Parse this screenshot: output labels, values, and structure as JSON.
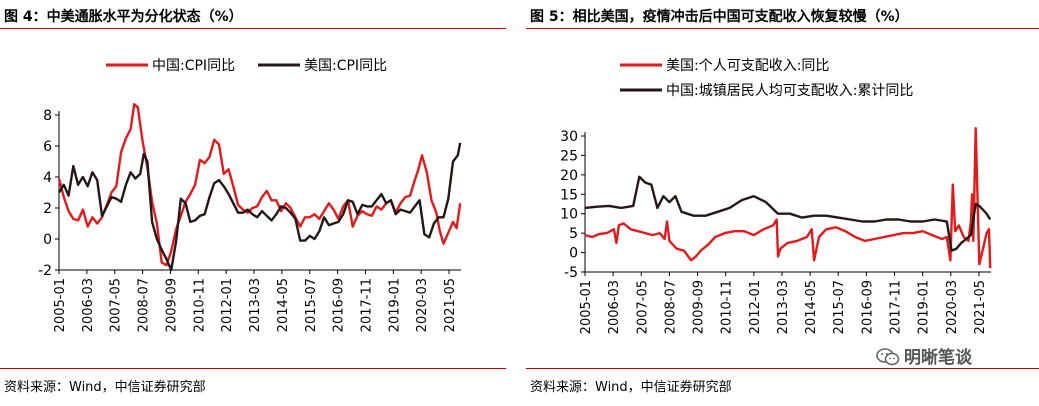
{
  "left": {
    "title": "图 4：中美通胀水平为分化状态（%）",
    "source": "资料来源：Wind，中信证券研究部"
  },
  "right": {
    "title": "图 5：相比美国，疫情冲击后中国可支配收入恢复较慢（%）",
    "source": "资料来源：Wind，中信证券研究部"
  },
  "watermark": {
    "text": "明晰笔谈",
    "icon": "wechat-icon"
  },
  "colors": {
    "red": "#e31a1c",
    "black": "#231815",
    "rule": "#c00000"
  },
  "chart_data": [
    {
      "type": "line",
      "title": "",
      "legend_placement": "top",
      "ylim": [
        -2,
        8
      ],
      "yticks": [
        -2,
        0,
        2,
        4,
        6,
        8
      ],
      "xlim": [
        2005.0,
        2021.8333
      ],
      "xticks": [
        "2005-01",
        "2006-03",
        "2007-05",
        "2008-07",
        "2009-09",
        "2010-11",
        "2012-01",
        "2013-03",
        "2014-05",
        "2015-07",
        "2016-09",
        "2017-11",
        "2019-01",
        "2020-03",
        "2021-05"
      ],
      "xtick_values": [
        2005.0,
        2006.1667,
        2007.3333,
        2008.5,
        2009.6667,
        2010.8333,
        2012.0,
        2013.1667,
        2014.3333,
        2015.5,
        2016.6667,
        2017.8333,
        2019.0,
        2020.1667,
        2021.3333
      ],
      "grid": false,
      "series": [
        {
          "name": "中国:CPI同比",
          "color": "#e31a1c",
          "x": [
            2005.0,
            2005.2,
            2005.4,
            2005.6,
            2005.8,
            2006.0,
            2006.2,
            2006.4,
            2006.6,
            2006.8,
            2007.0,
            2007.2,
            2007.4,
            2007.6,
            2007.8,
            2008.0,
            2008.15,
            2008.3,
            2008.5,
            2008.7,
            2008.9,
            2009.1,
            2009.3,
            2009.5,
            2009.7,
            2009.9,
            2010.1,
            2010.3,
            2010.5,
            2010.7,
            2010.9,
            2011.1,
            2011.3,
            2011.5,
            2011.7,
            2011.9,
            2012.1,
            2012.3,
            2012.5,
            2012.7,
            2012.9,
            2013.1,
            2013.3,
            2013.5,
            2013.7,
            2013.9,
            2014.1,
            2014.3,
            2014.5,
            2014.7,
            2014.9,
            2015.1,
            2015.3,
            2015.5,
            2015.7,
            2015.9,
            2016.1,
            2016.3,
            2016.5,
            2016.7,
            2016.9,
            2017.1,
            2017.3,
            2017.5,
            2017.7,
            2017.9,
            2018.1,
            2018.3,
            2018.5,
            2018.7,
            2018.9,
            2019.1,
            2019.3,
            2019.5,
            2019.7,
            2019.9,
            2020.05,
            2020.2,
            2020.4,
            2020.6,
            2020.8,
            2020.95,
            2021.1,
            2021.3,
            2021.5,
            2021.65,
            2021.8
          ],
          "y": [
            3.9,
            2.7,
            1.8,
            1.3,
            1.2,
            1.9,
            0.8,
            1.4,
            1.0,
            1.4,
            2.2,
            3.0,
            3.4,
            5.6,
            6.5,
            7.1,
            8.7,
            8.5,
            6.3,
            4.6,
            2.4,
            1.0,
            -1.5,
            -1.7,
            -0.8,
            0.6,
            1.5,
            2.4,
            2.9,
            3.5,
            5.1,
            4.9,
            5.3,
            6.4,
            6.1,
            4.2,
            4.5,
            3.4,
            2.2,
            1.9,
            1.7,
            2.0,
            2.1,
            2.7,
            3.1,
            2.5,
            2.5,
            1.8,
            2.3,
            2.0,
            1.4,
            0.8,
            1.4,
            1.4,
            1.6,
            1.3,
            1.8,
            2.3,
            1.9,
            1.3,
            2.1,
            2.5,
            0.8,
            1.5,
            1.8,
            1.6,
            1.5,
            2.1,
            1.9,
            2.3,
            2.5,
            1.7,
            2.3,
            2.7,
            2.8,
            3.8,
            4.5,
            5.4,
            4.3,
            2.5,
            1.7,
            0.5,
            -0.3,
            0.4,
            1.1,
            0.7,
            2.3
          ]
        },
        {
          "name": "美国:CPI同比",
          "color": "#231815",
          "x": [
            2005.0,
            2005.2,
            2005.4,
            2005.6,
            2005.8,
            2006.0,
            2006.2,
            2006.4,
            2006.6,
            2006.8,
            2007.0,
            2007.2,
            2007.4,
            2007.6,
            2007.8,
            2008.0,
            2008.2,
            2008.4,
            2008.55,
            2008.7,
            2008.9,
            2009.1,
            2009.3,
            2009.5,
            2009.7,
            2009.9,
            2010.1,
            2010.3,
            2010.5,
            2010.7,
            2010.9,
            2011.1,
            2011.3,
            2011.5,
            2011.7,
            2011.9,
            2012.1,
            2012.3,
            2012.5,
            2012.7,
            2012.9,
            2013.1,
            2013.3,
            2013.5,
            2013.7,
            2013.9,
            2014.1,
            2014.3,
            2014.5,
            2014.7,
            2014.9,
            2015.1,
            2015.3,
            2015.5,
            2015.7,
            2015.9,
            2016.1,
            2016.3,
            2016.5,
            2016.7,
            2016.9,
            2017.1,
            2017.3,
            2017.5,
            2017.7,
            2017.9,
            2018.1,
            2018.3,
            2018.5,
            2018.7,
            2018.9,
            2019.1,
            2019.3,
            2019.5,
            2019.7,
            2019.9,
            2020.1,
            2020.3,
            2020.5,
            2020.7,
            2020.9,
            2021.1,
            2021.3,
            2021.5,
            2021.7,
            2021.8
          ],
          "y": [
            3.0,
            3.5,
            2.8,
            4.7,
            3.5,
            4.0,
            3.4,
            4.3,
            3.8,
            1.5,
            2.1,
            2.7,
            2.6,
            2.4,
            3.5,
            4.3,
            3.9,
            4.2,
            5.5,
            5.0,
            1.1,
            0.0,
            -0.7,
            -1.3,
            -2.0,
            -0.2,
            2.6,
            2.3,
            1.1,
            1.2,
            1.5,
            1.6,
            2.7,
            3.6,
            3.8,
            3.4,
            2.9,
            2.3,
            1.7,
            1.7,
            1.9,
            1.6,
            1.4,
            1.8,
            1.5,
            1.2,
            1.6,
            2.1,
            2.0,
            1.7,
            1.3,
            -0.1,
            -0.1,
            0.2,
            0.0,
            0.5,
            1.4,
            0.9,
            1.0,
            1.1,
            1.6,
            2.5,
            2.4,
            1.6,
            2.2,
            2.1,
            2.1,
            2.5,
            2.9,
            2.3,
            2.5,
            1.6,
            1.9,
            1.8,
            1.7,
            2.1,
            2.5,
            0.3,
            0.1,
            1.0,
            1.4,
            1.4,
            2.6,
            5.0,
            5.4,
            6.2
          ]
        }
      ]
    },
    {
      "type": "line",
      "title": "",
      "legend_placement": "top",
      "ylim": [
        -5,
        30
      ],
      "yticks": [
        -5,
        0,
        5,
        10,
        15,
        20,
        25,
        30
      ],
      "xlim": [
        2005.0,
        2021.8333
      ],
      "xticks": [
        "2005-01",
        "2006-03",
        "2007-05",
        "2008-07",
        "2009-09",
        "2010-11",
        "2012-01",
        "2013-03",
        "2014-05",
        "2015-07",
        "2016-09",
        "2017-11",
        "2019-01",
        "2020-03",
        "2021-05"
      ],
      "xtick_values": [
        2005.0,
        2006.1667,
        2007.3333,
        2008.5,
        2009.6667,
        2010.8333,
        2012.0,
        2013.1667,
        2014.3333,
        2015.5,
        2016.6667,
        2017.8333,
        2019.0,
        2020.1667,
        2021.3333
      ],
      "grid": false,
      "series": [
        {
          "name": "美国:个人可支配收入:同比",
          "color": "#e31a1c",
          "x": [
            2005.0,
            2005.3,
            2005.6,
            2005.9,
            2006.2,
            2006.3,
            2006.4,
            2006.6,
            2006.9,
            2007.2,
            2007.5,
            2007.8,
            2008.1,
            2008.3,
            2008.4,
            2008.5,
            2008.8,
            2009.1,
            2009.4,
            2009.6,
            2009.8,
            2010.1,
            2010.4,
            2010.8,
            2011.2,
            2011.6,
            2012.0,
            2012.4,
            2012.8,
            2012.95,
            2013.0,
            2013.1,
            2013.4,
            2013.8,
            2014.2,
            2014.4,
            2014.5,
            2014.7,
            2015.0,
            2015.4,
            2015.8,
            2016.2,
            2016.6,
            2017.0,
            2017.4,
            2017.8,
            2018.2,
            2018.6,
            2019.0,
            2019.4,
            2019.8,
            2020.0,
            2020.15,
            2020.25,
            2020.35,
            2020.5,
            2020.7,
            2020.9,
            2021.0,
            2021.05,
            2021.1,
            2021.2,
            2021.35,
            2021.5,
            2021.65,
            2021.75,
            2021.8
          ],
          "y": [
            4.5,
            4.0,
            4.8,
            5.0,
            6.0,
            2.5,
            7.0,
            7.5,
            6.0,
            5.5,
            5.0,
            4.5,
            5.0,
            3.5,
            8.0,
            3.0,
            1.0,
            0.5,
            -2.0,
            -1.0,
            0.5,
            2.0,
            4.0,
            5.0,
            5.5,
            5.5,
            4.5,
            6.0,
            7.0,
            8.5,
            -1.0,
            1.0,
            2.5,
            3.0,
            4.0,
            6.0,
            -2.0,
            4.0,
            6.0,
            6.5,
            5.5,
            4.0,
            3.0,
            3.5,
            4.0,
            4.5,
            5.0,
            5.0,
            5.5,
            4.5,
            3.5,
            4.0,
            -2.0,
            17.5,
            5.5,
            7.0,
            4.0,
            3.0,
            8.0,
            15.0,
            3.0,
            32.0,
            -3.0,
            1.0,
            5.0,
            6.0,
            -4.0
          ]
        },
        {
          "name": "中国:城镇居民人均可支配收入:累计同比",
          "color": "#231815",
          "x": [
            2005.0,
            2005.5,
            2006.0,
            2006.5,
            2007.0,
            2007.25,
            2007.5,
            2007.75,
            2008.0,
            2008.25,
            2008.5,
            2008.75,
            2009.0,
            2009.5,
            2010.0,
            2010.5,
            2011.0,
            2011.5,
            2012.0,
            2012.5,
            2013.0,
            2013.5,
            2014.0,
            2014.5,
            2015.0,
            2015.5,
            2016.0,
            2016.5,
            2017.0,
            2017.5,
            2018.0,
            2018.5,
            2019.0,
            2019.5,
            2020.0,
            2020.2,
            2020.4,
            2020.6,
            2020.8,
            2021.0,
            2021.2,
            2021.35,
            2021.5,
            2021.65,
            2021.8
          ],
          "y": [
            11.5,
            11.8,
            12.0,
            11.5,
            12.0,
            19.5,
            18.0,
            17.5,
            11.5,
            14.5,
            13.0,
            14.5,
            10.5,
            9.5,
            9.5,
            10.5,
            11.5,
            13.5,
            14.5,
            13.0,
            10.0,
            10.0,
            9.0,
            9.5,
            9.5,
            9.0,
            8.5,
            8.0,
            8.0,
            8.5,
            8.5,
            8.0,
            8.0,
            8.5,
            8.0,
            0.5,
            1.0,
            2.5,
            3.5,
            4.5,
            12.5,
            12.0,
            11.0,
            10.0,
            8.5
          ]
        }
      ]
    }
  ]
}
